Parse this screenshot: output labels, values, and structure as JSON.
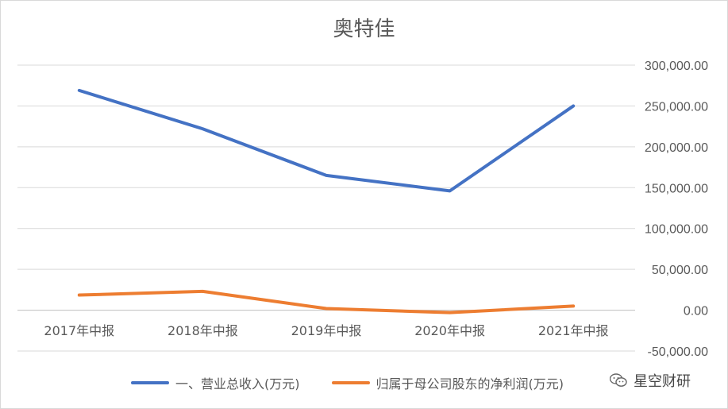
{
  "chart_data": {
    "type": "line",
    "title": "奥特佳",
    "categories": [
      "2017年中报",
      "2018年中报",
      "2019年中报",
      "2020年中报",
      "2021年中报"
    ],
    "series": [
      {
        "name": "一、营业总收入(万元)",
        "color": "#4472c4",
        "values": [
          269000,
          222000,
          165000,
          146000,
          250000
        ]
      },
      {
        "name": "归属于母公司股东的净利润(万元)",
        "color": "#ed7d31",
        "values": [
          18500,
          23000,
          2000,
          -3000,
          5000
        ]
      }
    ],
    "ylim": [
      -50000,
      300000
    ],
    "yticks": [
      "300,000.00",
      "250,000.00",
      "200,000.00",
      "150,000.00",
      "100,000.00",
      "50,000.00",
      "0.00",
      "-50,000.00"
    ],
    "ytick_values": [
      300000,
      250000,
      200000,
      150000,
      100000,
      50000,
      0,
      -50000
    ],
    "grid": true,
    "legend_position": "bottom"
  },
  "watermark": {
    "text": "星空财研",
    "icon": "wechat-icon"
  }
}
